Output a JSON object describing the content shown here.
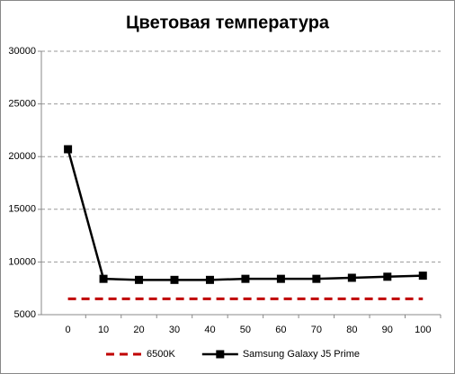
{
  "chart_data": {
    "type": "line",
    "title": "Цветовая температура",
    "x": [
      0,
      10,
      20,
      30,
      40,
      50,
      60,
      70,
      80,
      90,
      100
    ],
    "xlim": [
      -7.5,
      105
    ],
    "xticks": [
      0,
      10,
      20,
      30,
      40,
      50,
      60,
      70,
      80,
      90,
      100
    ],
    "ylim": [
      5000,
      30000
    ],
    "yticks": [
      5000,
      10000,
      15000,
      20000,
      25000,
      30000
    ],
    "grid": true,
    "legend": "bottom",
    "series": [
      {
        "name": "6500K",
        "color": "#c00000",
        "dashed": true,
        "marker": "none",
        "values": [
          6500,
          6500,
          6500,
          6500,
          6500,
          6500,
          6500,
          6500,
          6500,
          6500,
          6500
        ]
      },
      {
        "name": "Samsung Galaxy J5 Prime",
        "color": "#000000",
        "dashed": false,
        "marker": "square",
        "values": [
          20700,
          8400,
          8300,
          8300,
          8300,
          8400,
          8400,
          8400,
          8500,
          8600,
          8700
        ]
      }
    ]
  }
}
